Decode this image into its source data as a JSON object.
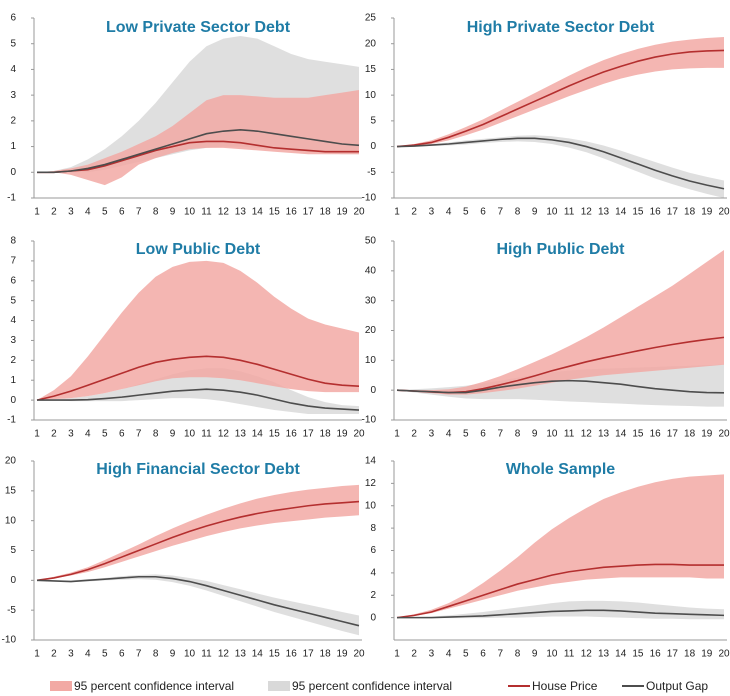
{
  "legend": [
    {
      "name": "95 percent confidence interval",
      "color": "#f2a9a4",
      "kind": "band"
    },
    {
      "name": "95 percent confidence interval",
      "color": "#d9d9d9",
      "kind": "band"
    },
    {
      "name": "House Price",
      "color": "#b42f2f",
      "kind": "line"
    },
    {
      "name": "Output Gap",
      "color": "#4d4d4d",
      "kind": "line"
    }
  ],
  "chart_data": [
    {
      "type": "line",
      "title": "Low Private Sector Debt",
      "categories": [
        "1",
        "2",
        "3",
        "4",
        "5",
        "6",
        "7",
        "8",
        "9",
        "10",
        "11",
        "12",
        "13",
        "14",
        "15",
        "16",
        "17",
        "18",
        "19",
        "20"
      ],
      "ylim": [
        -1,
        6
      ],
      "yticks": [
        -1,
        0,
        1,
        2,
        3,
        4,
        5,
        6
      ],
      "bands": [
        {
          "color": "#d9d9d9",
          "lower": [
            0,
            0,
            0,
            0,
            0.1,
            0.25,
            0.4,
            0.55,
            0.7,
            0.85,
            0.95,
            1.0,
            1.0,
            0.95,
            0.9,
            0.85,
            0.8,
            0.75,
            0.7,
            0.7
          ],
          "upper": [
            0,
            0.05,
            0.2,
            0.5,
            0.9,
            1.4,
            2.0,
            2.7,
            3.5,
            4.3,
            4.9,
            5.2,
            5.3,
            5.2,
            4.9,
            4.6,
            4.4,
            4.3,
            4.2,
            4.1
          ]
        },
        {
          "color": "#f2a9a4",
          "lower": [
            0,
            0,
            -0.1,
            -0.3,
            -0.5,
            -0.2,
            0.3,
            0.55,
            0.75,
            0.9,
            0.95,
            0.95,
            0.9,
            0.85,
            0.8,
            0.75,
            0.7,
            0.7,
            0.7,
            0.7
          ],
          "upper": [
            0,
            0.05,
            0.15,
            0.3,
            0.55,
            0.8,
            1.1,
            1.4,
            1.8,
            2.3,
            2.8,
            3.0,
            3.0,
            2.95,
            2.9,
            2.9,
            2.9,
            3.0,
            3.1,
            3.2
          ]
        }
      ],
      "series": [
        {
          "color": "#b42f2f",
          "values": [
            0,
            0,
            0.05,
            0.1,
            0.25,
            0.45,
            0.65,
            0.85,
            1.0,
            1.15,
            1.2,
            1.2,
            1.15,
            1.05,
            0.95,
            0.9,
            0.85,
            0.8,
            0.8,
            0.8
          ]
        },
        {
          "color": "#4d4d4d",
          "values": [
            0,
            0,
            0.05,
            0.15,
            0.3,
            0.5,
            0.7,
            0.9,
            1.1,
            1.3,
            1.5,
            1.6,
            1.65,
            1.6,
            1.5,
            1.4,
            1.3,
            1.2,
            1.1,
            1.05
          ]
        }
      ]
    },
    {
      "type": "line",
      "title": "High Private Sector Debt",
      "categories": [
        "1",
        "2",
        "3",
        "4",
        "5",
        "6",
        "7",
        "8",
        "9",
        "10",
        "11",
        "12",
        "13",
        "14",
        "15",
        "16",
        "17",
        "18",
        "19",
        "20"
      ],
      "ylim": [
        -10,
        25
      ],
      "yticks": [
        -10,
        -5,
        0,
        5,
        10,
        15,
        20,
        25
      ],
      "bands": [
        {
          "color": "#d9d9d9",
          "lower": [
            0,
            0,
            0.1,
            0.2,
            0.4,
            0.7,
            0.9,
            1.0,
            0.9,
            0.5,
            -0.2,
            -1.1,
            -2.3,
            -3.6,
            -4.9,
            -6.2,
            -7.3,
            -8.3,
            -9.2,
            -10
          ],
          "upper": [
            0,
            0.2,
            0.5,
            0.8,
            1.2,
            1.5,
            1.8,
            2.1,
            2.2,
            2,
            1.6,
            1,
            0.2,
            -0.8,
            -1.9,
            -3,
            -4.1,
            -5.1,
            -5.9,
            -6.6
          ]
        },
        {
          "color": "#f2a9a4",
          "lower": [
            0,
            0.1,
            0.5,
            1.2,
            2.2,
            3.3,
            4.6,
            5.9,
            7.2,
            8.5,
            9.8,
            11,
            12.2,
            13.2,
            14,
            14.6,
            15,
            15.2,
            15.3,
            15.3
          ],
          "upper": [
            0,
            0.5,
            1.2,
            2.4,
            3.8,
            5.3,
            7,
            8.7,
            10.4,
            12.1,
            13.8,
            15.4,
            16.8,
            18,
            19,
            19.8,
            20.4,
            20.8,
            21.1,
            21.3
          ]
        }
      ],
      "series": [
        {
          "color": "#b42f2f",
          "values": [
            0,
            0.3,
            0.8,
            1.8,
            3,
            4.3,
            5.8,
            7.3,
            8.8,
            10.3,
            11.8,
            13.2,
            14.5,
            15.6,
            16.6,
            17.4,
            18,
            18.4,
            18.6,
            18.7
          ]
        },
        {
          "color": "#4d4d4d",
          "values": [
            0,
            0.1,
            0.3,
            0.5,
            0.8,
            1.1,
            1.4,
            1.6,
            1.6,
            1.3,
            0.8,
            0,
            -1,
            -2.2,
            -3.4,
            -4.6,
            -5.7,
            -6.7,
            -7.5,
            -8.2
          ]
        }
      ]
    },
    {
      "type": "line",
      "title": "Low Public Debt",
      "categories": [
        "1",
        "2",
        "3",
        "4",
        "5",
        "6",
        "7",
        "8",
        "9",
        "10",
        "11",
        "12",
        "13",
        "14",
        "15",
        "16",
        "17",
        "18",
        "19",
        "20"
      ],
      "ylim": [
        -1,
        8
      ],
      "yticks": [
        -1,
        0,
        1,
        2,
        3,
        4,
        5,
        6,
        7,
        8
      ],
      "bands": [
        {
          "color": "#d9d9d9",
          "lower": [
            0,
            0,
            -0.05,
            -0.05,
            -0.05,
            -0.05,
            0,
            0.05,
            0.1,
            0.1,
            0.05,
            -0.05,
            -0.2,
            -0.35,
            -0.5,
            -0.6,
            -0.7,
            -0.7,
            -0.7,
            -0.7
          ],
          "upper": [
            0,
            0.05,
            0.1,
            0.2,
            0.35,
            0.55,
            0.8,
            1.05,
            1.3,
            1.5,
            1.6,
            1.6,
            1.45,
            1.2,
            0.9,
            0.5,
            0.15,
            -0.1,
            -0.25,
            -0.3
          ]
        },
        {
          "color": "#f2a9a4",
          "lower": [
            0,
            0.05,
            0.1,
            0.2,
            0.35,
            0.55,
            0.75,
            0.95,
            1.1,
            1.15,
            1.15,
            1.1,
            1.0,
            0.85,
            0.7,
            0.55,
            0.45,
            0.4,
            0.4,
            0.4
          ],
          "upper": [
            0,
            0.5,
            1.2,
            2.2,
            3.3,
            4.4,
            5.4,
            6.2,
            6.7,
            6.95,
            7.0,
            6.9,
            6.5,
            5.9,
            5.2,
            4.6,
            4.1,
            3.8,
            3.6,
            3.4
          ]
        }
      ],
      "series": [
        {
          "color": "#b42f2f",
          "values": [
            0,
            0.2,
            0.45,
            0.75,
            1.05,
            1.35,
            1.65,
            1.9,
            2.05,
            2.15,
            2.2,
            2.15,
            2.0,
            1.8,
            1.55,
            1.3,
            1.05,
            0.85,
            0.75,
            0.7
          ]
        },
        {
          "color": "#4d4d4d",
          "values": [
            0,
            0,
            0,
            0.02,
            0.08,
            0.15,
            0.25,
            0.35,
            0.45,
            0.5,
            0.55,
            0.5,
            0.4,
            0.25,
            0.05,
            -0.15,
            -0.3,
            -0.4,
            -0.45,
            -0.5
          ]
        }
      ]
    },
    {
      "type": "line",
      "title": "High Public Debt",
      "categories": [
        "1",
        "2",
        "3",
        "4",
        "5",
        "6",
        "7",
        "8",
        "9",
        "10",
        "11",
        "12",
        "13",
        "14",
        "15",
        "16",
        "17",
        "18",
        "19",
        "20"
      ],
      "ylim": [
        -10,
        50
      ],
      "yticks": [
        -10,
        0,
        10,
        20,
        30,
        40,
        50
      ],
      "bands": [
        {
          "color": "#d9d9d9",
          "lower": [
            0,
            -0.8,
            -1.5,
            -2.2,
            -2.8,
            -3,
            -3,
            -3,
            -3.2,
            -3.5,
            -3.8,
            -4,
            -4.3,
            -4.5,
            -4.8,
            -5,
            -5.2,
            -5.3,
            -5.5,
            -5.5
          ],
          "upper": [
            0,
            0.3,
            0.6,
            1,
            1.5,
            2.3,
            3.2,
            4.2,
            5.2,
            6,
            6.6,
            7,
            7.2,
            7.4,
            7.6,
            7.8,
            8,
            8.2,
            8.4,
            8.6
          ]
        },
        {
          "color": "#f2a9a4",
          "lower": [
            0,
            -0.5,
            -1,
            -1.5,
            -1.5,
            -1,
            -0.3,
            0.5,
            1.5,
            2.5,
            3.5,
            4.3,
            5,
            5.5,
            6,
            6.5,
            7,
            7.5,
            8,
            8.5
          ],
          "upper": [
            0,
            0,
            0,
            0.3,
            1.2,
            2.8,
            4.7,
            7,
            9.5,
            12,
            14.8,
            17.8,
            21,
            24.5,
            28,
            31.5,
            35,
            39,
            43,
            47
          ]
        }
      ],
      "series": [
        {
          "color": "#b42f2f",
          "values": [
            0,
            -0.3,
            -0.6,
            -0.8,
            -0.5,
            0.5,
            1.8,
            3.2,
            4.8,
            6.5,
            8,
            9.5,
            10.8,
            12,
            13.2,
            14.3,
            15.3,
            16.2,
            17,
            17.7
          ]
        },
        {
          "color": "#4d4d4d",
          "values": [
            0,
            -0.3,
            -0.5,
            -0.8,
            -0.8,
            0,
            1,
            1.8,
            2.5,
            3,
            3.2,
            3,
            2.5,
            2,
            1.2,
            0.5,
            0,
            -0.5,
            -0.8,
            -0.9
          ]
        }
      ]
    },
    {
      "type": "line",
      "title": "High Financial Sector Debt",
      "categories": [
        "1",
        "2",
        "3",
        "4",
        "5",
        "6",
        "7",
        "8",
        "9",
        "10",
        "11",
        "12",
        "13",
        "14",
        "15",
        "16",
        "17",
        "18",
        "19",
        "20"
      ],
      "ylim": [
        -10,
        20
      ],
      "yticks": [
        -10,
        -5,
        0,
        5,
        10,
        15,
        20
      ],
      "bands": [
        {
          "color": "#d9d9d9",
          "lower": [
            0,
            -0.1,
            -0.3,
            -0.2,
            0,
            0.1,
            0.2,
            0.1,
            -0.3,
            -0.9,
            -1.7,
            -2.6,
            -3.5,
            -4.4,
            -5.3,
            -6.1,
            -6.9,
            -7.7,
            -8.5,
            -9.2
          ],
          "upper": [
            0,
            0,
            0,
            0.2,
            0.4,
            0.7,
            0.9,
            1,
            0.8,
            0.4,
            -0.1,
            -0.8,
            -1.5,
            -2.2,
            -2.9,
            -3.5,
            -4.1,
            -4.7,
            -5.3,
            -5.9
          ]
        },
        {
          "color": "#f2a9a4",
          "lower": [
            0,
            0.3,
            0.8,
            1.4,
            2.2,
            3.1,
            4,
            4.9,
            5.8,
            6.6,
            7.4,
            8.1,
            8.7,
            9.2,
            9.6,
            9.9,
            10.2,
            10.5,
            10.7,
            10.9
          ],
          "upper": [
            0,
            0.6,
            1.3,
            2.2,
            3.4,
            4.7,
            6,
            7.4,
            8.7,
            9.9,
            11,
            12,
            12.9,
            13.7,
            14.3,
            14.8,
            15.2,
            15.5,
            15.8,
            16
          ]
        }
      ],
      "series": [
        {
          "color": "#b42f2f",
          "values": [
            0,
            0.4,
            1,
            1.8,
            2.8,
            3.9,
            5,
            6.1,
            7.2,
            8.2,
            9.1,
            9.9,
            10.6,
            11.2,
            11.7,
            12.1,
            12.5,
            12.8,
            13,
            13.2
          ]
        },
        {
          "color": "#4d4d4d",
          "values": [
            0,
            -0.1,
            -0.2,
            0,
            0.2,
            0.4,
            0.6,
            0.6,
            0.3,
            -0.2,
            -0.9,
            -1.7,
            -2.5,
            -3.3,
            -4.1,
            -4.8,
            -5.5,
            -6.2,
            -6.9,
            -7.6
          ]
        }
      ]
    },
    {
      "type": "line",
      "title": "Whole Sample",
      "categories": [
        "1",
        "2",
        "3",
        "4",
        "5",
        "6",
        "7",
        "8",
        "9",
        "10",
        "11",
        "12",
        "13",
        "14",
        "15",
        "16",
        "17",
        "18",
        "19",
        "20"
      ],
      "ylim": [
        -2,
        14
      ],
      "yticks": [
        0,
        2,
        4,
        6,
        8,
        10,
        12,
        14
      ],
      "bands": [
        {
          "color": "#d9d9d9",
          "lower": [
            0,
            0,
            -0.05,
            -0.05,
            -0.05,
            -0.05,
            0,
            0,
            0.05,
            0.1,
            0.1,
            0.1,
            0.05,
            0,
            -0.05,
            -0.1,
            -0.1,
            -0.15,
            -0.15,
            -0.15
          ],
          "upper": [
            0,
            0.05,
            0.1,
            0.2,
            0.35,
            0.5,
            0.7,
            0.9,
            1.1,
            1.3,
            1.45,
            1.5,
            1.5,
            1.45,
            1.35,
            1.2,
            1.05,
            0.9,
            0.8,
            0.75
          ]
        },
        {
          "color": "#f2a9a4",
          "lower": [
            0,
            0.15,
            0.4,
            0.8,
            1.2,
            1.6,
            2,
            2.4,
            2.7,
            3,
            3.2,
            3.4,
            3.5,
            3.6,
            3.6,
            3.6,
            3.6,
            3.6,
            3.5,
            3.5
          ],
          "upper": [
            0,
            0.3,
            0.7,
            1.3,
            2.1,
            3.1,
            4.2,
            5.4,
            6.7,
            7.9,
            8.9,
            9.8,
            10.6,
            11.2,
            11.7,
            12.1,
            12.4,
            12.6,
            12.7,
            12.8
          ]
        }
      ],
      "series": [
        {
          "color": "#b42f2f",
          "values": [
            0,
            0.2,
            0.5,
            1,
            1.5,
            2,
            2.5,
            3,
            3.4,
            3.8,
            4.1,
            4.3,
            4.5,
            4.6,
            4.7,
            4.75,
            4.75,
            4.7,
            4.7,
            4.7
          ]
        },
        {
          "color": "#4d4d4d",
          "values": [
            0,
            0,
            0,
            0.05,
            0.1,
            0.15,
            0.25,
            0.35,
            0.45,
            0.55,
            0.6,
            0.65,
            0.65,
            0.6,
            0.5,
            0.4,
            0.35,
            0.3,
            0.25,
            0.2
          ]
        }
      ]
    }
  ]
}
